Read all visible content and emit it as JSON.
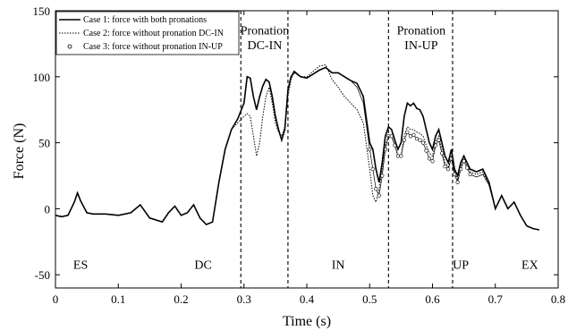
{
  "chart_data": {
    "type": "line",
    "xlabel": "Time (s)",
    "ylabel": "Force (N)",
    "xlim": [
      0,
      0.8
    ],
    "ylim": [
      -60,
      150
    ],
    "xticks": [
      "0",
      "0.1",
      "0.2",
      "0.3",
      "0.4",
      "0.5",
      "0.6",
      "0.7",
      "0.8"
    ],
    "yticks": [
      "-50",
      "0",
      "50",
      "100",
      "150"
    ],
    "grid": false,
    "legend_position": "top-left",
    "series": [
      {
        "name": "Case 1: force with both pronations",
        "style": "solid",
        "x": [
          0.0,
          0.01,
          0.02,
          0.03,
          0.035,
          0.04,
          0.05,
          0.06,
          0.08,
          0.1,
          0.12,
          0.135,
          0.15,
          0.17,
          0.18,
          0.19,
          0.2,
          0.21,
          0.22,
          0.23,
          0.24,
          0.25,
          0.26,
          0.27,
          0.28,
          0.29,
          0.3,
          0.305,
          0.31,
          0.315,
          0.32,
          0.325,
          0.33,
          0.335,
          0.34,
          0.345,
          0.35,
          0.355,
          0.36,
          0.365,
          0.37,
          0.375,
          0.38,
          0.39,
          0.4,
          0.41,
          0.42,
          0.43,
          0.44,
          0.45,
          0.46,
          0.47,
          0.48,
          0.49,
          0.5,
          0.505,
          0.51,
          0.515,
          0.52,
          0.525,
          0.53,
          0.535,
          0.54,
          0.545,
          0.55,
          0.555,
          0.56,
          0.565,
          0.57,
          0.575,
          0.58,
          0.585,
          0.59,
          0.595,
          0.6,
          0.605,
          0.61,
          0.615,
          0.62,
          0.625,
          0.63,
          0.635,
          0.64,
          0.645,
          0.65,
          0.655,
          0.66,
          0.67,
          0.68,
          0.69,
          0.7,
          0.71,
          0.715,
          0.72,
          0.73,
          0.74,
          0.75,
          0.76,
          0.77
        ],
        "values": [
          -5,
          -6,
          -5,
          5,
          12,
          6,
          -3,
          -4,
          -4,
          -5,
          -3,
          3,
          -7,
          -10,
          -3,
          2,
          -5,
          -3,
          3,
          -7,
          -12,
          -10,
          20,
          45,
          60,
          68,
          80,
          100,
          99,
          85,
          75,
          85,
          93,
          98,
          96,
          85,
          70,
          60,
          52,
          60,
          90,
          100,
          104,
          100,
          99,
          102,
          105,
          107,
          103,
          103,
          100,
          97,
          95,
          85,
          50,
          45,
          30,
          20,
          35,
          55,
          62,
          60,
          52,
          45,
          50,
          70,
          80,
          78,
          80,
          76,
          75,
          70,
          60,
          50,
          45,
          55,
          60,
          50,
          40,
          35,
          45,
          30,
          25,
          35,
          40,
          35,
          30,
          28,
          30,
          20,
          0,
          10,
          5,
          0,
          5,
          -5,
          -13,
          -15,
          -16
        ]
      },
      {
        "name": "Case 2: force without pronation DC-IN",
        "style": "dotted",
        "x": [
          0.0,
          0.01,
          0.02,
          0.03,
          0.035,
          0.04,
          0.05,
          0.06,
          0.08,
          0.1,
          0.12,
          0.135,
          0.15,
          0.17,
          0.18,
          0.19,
          0.2,
          0.21,
          0.22,
          0.23,
          0.24,
          0.25,
          0.26,
          0.27,
          0.28,
          0.29,
          0.3,
          0.305,
          0.31,
          0.315,
          0.32,
          0.325,
          0.33,
          0.335,
          0.34,
          0.345,
          0.35,
          0.355,
          0.36,
          0.365,
          0.37,
          0.375,
          0.38,
          0.39,
          0.4,
          0.41,
          0.42,
          0.43,
          0.44,
          0.45,
          0.46,
          0.47,
          0.48,
          0.49,
          0.5,
          0.505,
          0.51,
          0.515,
          0.52,
          0.525,
          0.53,
          0.535,
          0.54,
          0.545,
          0.55,
          0.555,
          0.56,
          0.565,
          0.57,
          0.575,
          0.58,
          0.585,
          0.59,
          0.595,
          0.6,
          0.605,
          0.61,
          0.615,
          0.62,
          0.625,
          0.63,
          0.635,
          0.64,
          0.645,
          0.65,
          0.655,
          0.66,
          0.67,
          0.68,
          0.69,
          0.7,
          0.71,
          0.715,
          0.72,
          0.73,
          0.74,
          0.75,
          0.76,
          0.77
        ],
        "values": [
          -5,
          -6,
          -5,
          5,
          12,
          6,
          -3,
          -4,
          -4,
          -5,
          -3,
          3,
          -7,
          -10,
          -3,
          2,
          -5,
          -3,
          3,
          -7,
          -12,
          -10,
          20,
          45,
          60,
          65,
          70,
          72,
          70,
          55,
          40,
          50,
          70,
          85,
          92,
          80,
          65,
          58,
          55,
          62,
          85,
          98,
          103,
          100,
          100,
          104,
          108,
          109,
          98,
          92,
          85,
          80,
          75,
          65,
          30,
          10,
          5,
          15,
          30,
          48,
          55,
          55,
          48,
          40,
          40,
          55,
          62,
          60,
          60,
          58,
          57,
          55,
          48,
          42,
          40,
          50,
          55,
          45,
          35,
          32,
          40,
          28,
          22,
          32,
          38,
          33,
          28,
          26,
          28,
          18,
          0,
          10,
          5,
          0,
          5,
          -5,
          -13,
          -15,
          -16
        ]
      },
      {
        "name": "Case 3: force without pronation IN-UP",
        "style": "circles",
        "x": [
          0.0,
          0.01,
          0.02,
          0.03,
          0.035,
          0.04,
          0.05,
          0.06,
          0.08,
          0.1,
          0.12,
          0.135,
          0.15,
          0.17,
          0.18,
          0.19,
          0.2,
          0.21,
          0.22,
          0.23,
          0.24,
          0.25,
          0.26,
          0.27,
          0.28,
          0.29,
          0.3,
          0.305,
          0.31,
          0.315,
          0.32,
          0.325,
          0.33,
          0.335,
          0.34,
          0.345,
          0.35,
          0.355,
          0.36,
          0.365,
          0.37,
          0.375,
          0.38,
          0.39,
          0.4,
          0.41,
          0.42,
          0.43,
          0.44,
          0.45,
          0.46,
          0.47,
          0.48,
          0.49,
          0.5,
          0.505,
          0.51,
          0.515,
          0.52,
          0.525,
          0.53,
          0.535,
          0.54,
          0.545,
          0.55,
          0.555,
          0.56,
          0.565,
          0.57,
          0.575,
          0.58,
          0.585,
          0.59,
          0.595,
          0.6,
          0.605,
          0.61,
          0.615,
          0.62,
          0.625,
          0.63,
          0.635,
          0.64,
          0.645,
          0.65,
          0.655,
          0.66,
          0.67,
          0.68,
          0.69,
          0.7,
          0.71,
          0.715,
          0.72,
          0.73,
          0.74,
          0.75,
          0.76,
          0.77
        ],
        "values": [
          -5,
          -6,
          -5,
          5,
          12,
          6,
          -3,
          -4,
          -4,
          -5,
          -3,
          3,
          -7,
          -10,
          -3,
          2,
          -5,
          -3,
          3,
          -7,
          -12,
          -10,
          20,
          45,
          60,
          68,
          80,
          100,
          99,
          85,
          75,
          85,
          93,
          98,
          96,
          85,
          70,
          60,
          52,
          60,
          90,
          100,
          104,
          100,
          99,
          102,
          105,
          107,
          103,
          103,
          100,
          97,
          92,
          80,
          45,
          30,
          15,
          10,
          25,
          45,
          55,
          55,
          48,
          40,
          40,
          52,
          58,
          55,
          56,
          53,
          52,
          50,
          44,
          38,
          36,
          48,
          52,
          42,
          32,
          30,
          38,
          26,
          20,
          30,
          36,
          31,
          26,
          24,
          26,
          18,
          0,
          10,
          5,
          0,
          5,
          -5,
          -13,
          -15,
          -16
        ]
      }
    ],
    "vlines": [
      0.295,
      0.37,
      0.53,
      0.632
    ],
    "phases": [
      {
        "label": "ES",
        "x": 0.04
      },
      {
        "label": "DC",
        "x": 0.235
      },
      {
        "label": "IN",
        "x": 0.45
      },
      {
        "label": "UP",
        "x": 0.645
      },
      {
        "label": "EX",
        "x": 0.755
      }
    ],
    "phase_y": -42,
    "annotations": [
      {
        "line1": "Pronation",
        "line2": "DC-IN",
        "x": 0.333,
        "y1": 132,
        "y2": 121
      },
      {
        "line1": "Pronation",
        "line2": "IN-UP",
        "x": 0.582,
        "y1": 132,
        "y2": 121
      }
    ],
    "colors": {
      "line": "#000000",
      "background": "#ffffff"
    }
  }
}
